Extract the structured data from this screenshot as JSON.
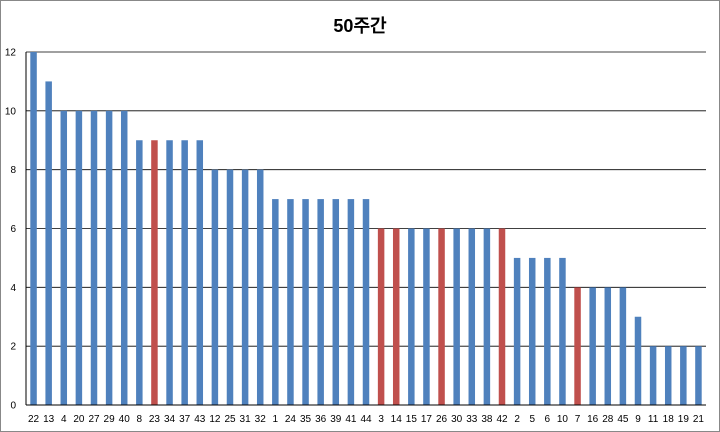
{
  "chart_data": {
    "type": "bar",
    "title": "50주간",
    "xlabel": "",
    "ylabel": "",
    "ylim": [
      0,
      12
    ],
    "yticks": [
      0,
      2,
      4,
      6,
      8,
      10,
      12
    ],
    "grid": true,
    "legend": "none",
    "colors": {
      "default": "#4F81BD",
      "highlight": "#C0504D",
      "grid": "#000000"
    },
    "categories": [
      "22",
      "13",
      "4",
      "20",
      "27",
      "29",
      "40",
      "8",
      "23",
      "34",
      "37",
      "43",
      "12",
      "25",
      "31",
      "32",
      "1",
      "24",
      "35",
      "36",
      "39",
      "41",
      "44",
      "3",
      "14",
      "15",
      "17",
      "26",
      "30",
      "33",
      "38",
      "42",
      "2",
      "5",
      "6",
      "10",
      "7",
      "16",
      "28",
      "45",
      "9",
      "11",
      "18",
      "19",
      "21"
    ],
    "values": [
      12,
      11,
      10,
      10,
      10,
      10,
      10,
      9,
      9,
      9,
      9,
      9,
      8,
      8,
      8,
      8,
      7,
      7,
      7,
      7,
      7,
      7,
      7,
      6,
      6,
      6,
      6,
      6,
      6,
      6,
      6,
      6,
      5,
      5,
      5,
      5,
      4,
      4,
      4,
      4,
      3,
      2,
      2,
      2,
      2
    ],
    "highlighted": [
      "23",
      "3",
      "14",
      "26",
      "42",
      "7"
    ]
  }
}
